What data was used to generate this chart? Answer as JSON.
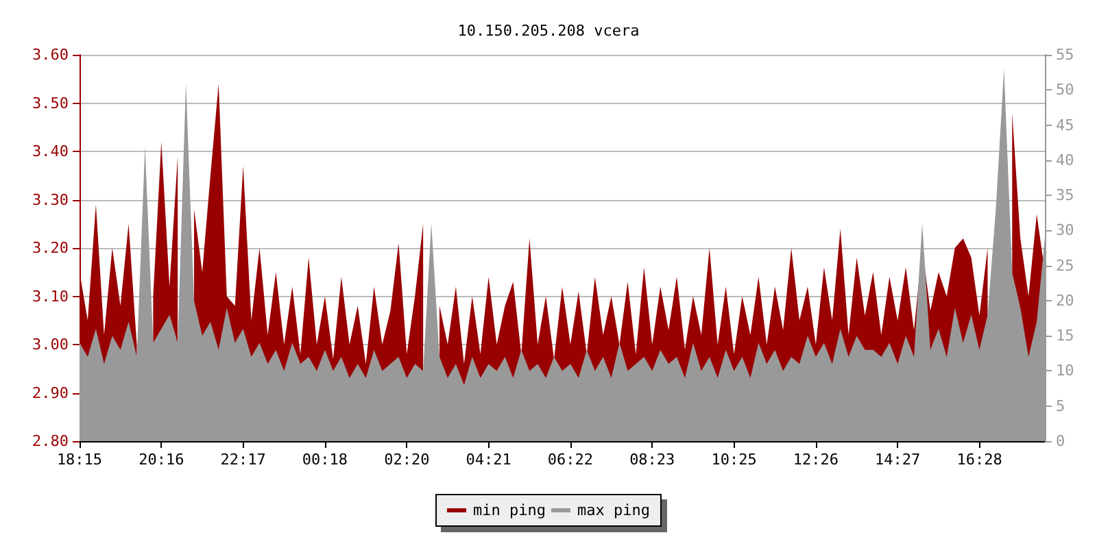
{
  "chart_data": {
    "type": "area",
    "title": "10.150.205.208 vcera",
    "categories": [
      "18:15",
      null,
      null,
      null,
      null,
      null,
      null,
      null,
      null,
      null,
      "20:16",
      null,
      null,
      null,
      null,
      null,
      null,
      null,
      null,
      null,
      "22:17",
      null,
      null,
      null,
      null,
      null,
      null,
      null,
      null,
      null,
      "00:18",
      null,
      null,
      null,
      null,
      null,
      null,
      null,
      null,
      null,
      "02:20",
      null,
      null,
      null,
      null,
      null,
      null,
      null,
      null,
      null,
      "04:21",
      null,
      null,
      null,
      null,
      null,
      null,
      null,
      null,
      null,
      "06:22",
      null,
      null,
      null,
      null,
      null,
      null,
      null,
      null,
      null,
      "08:23",
      null,
      null,
      null,
      null,
      null,
      null,
      null,
      null,
      null,
      "10:25",
      null,
      null,
      null,
      null,
      null,
      null,
      null,
      null,
      null,
      "12:26",
      null,
      null,
      null,
      null,
      null,
      null,
      null,
      null,
      null,
      "14:27",
      null,
      null,
      null,
      null,
      null,
      null,
      null,
      null,
      null,
      "16:28",
      null,
      null,
      null,
      null,
      null,
      null,
      null,
      null
    ],
    "series": [
      {
        "name": "min ping",
        "color": "#990000",
        "values": [
          3.15,
          3.05,
          3.29,
          3.02,
          3.2,
          3.08,
          3.25,
          3.0,
          null,
          3.1,
          3.42,
          3.12,
          3.39,
          null,
          3.28,
          3.15,
          3.35,
          3.54,
          3.1,
          3.08,
          3.37,
          3.05,
          3.2,
          3.02,
          3.15,
          3.0,
          3.12,
          2.98,
          3.18,
          3.0,
          3.1,
          2.97,
          3.14,
          3.0,
          3.08,
          2.96,
          3.12,
          3.0,
          3.07,
          3.21,
          2.98,
          3.1,
          3.25,
          null,
          3.08,
          3.0,
          3.12,
          2.96,
          3.1,
          2.98,
          3.14,
          3.0,
          3.08,
          3.13,
          2.98,
          3.22,
          3.0,
          3.1,
          2.97,
          3.12,
          3.0,
          3.11,
          2.98,
          3.14,
          3.02,
          3.1,
          3.0,
          3.13,
          2.98,
          3.16,
          3.0,
          3.12,
          3.03,
          3.14,
          2.99,
          3.1,
          3.02,
          3.2,
          3.0,
          3.12,
          2.98,
          3.1,
          3.02,
          3.14,
          3.0,
          3.12,
          3.03,
          3.2,
          3.05,
          3.12,
          3.0,
          3.16,
          3.05,
          3.24,
          3.02,
          3.18,
          3.06,
          3.15,
          3.02,
          3.14,
          3.05,
          3.16,
          3.03,
          3.2,
          3.07,
          3.15,
          3.1,
          3.2,
          3.22,
          3.18,
          3.06,
          3.2,
          null,
          null,
          3.48,
          3.22,
          3.1,
          3.27,
          3.15
        ]
      },
      {
        "name": "max ping",
        "color": "#999999",
        "axis": "y2",
        "values": [
          14,
          12,
          16,
          11,
          15,
          13,
          17,
          12,
          42,
          14,
          16,
          18,
          14,
          51,
          20,
          15,
          17,
          13,
          19,
          14,
          16,
          12,
          14,
          11,
          13,
          10,
          14,
          11,
          12,
          10,
          13,
          10,
          12,
          9,
          11,
          9,
          13,
          10,
          11,
          12,
          9,
          11,
          10,
          31,
          12,
          9,
          11,
          8,
          12,
          9,
          11,
          10,
          12,
          9,
          13,
          10,
          11,
          9,
          12,
          10,
          11,
          9,
          13,
          10,
          12,
          9,
          14,
          10,
          11,
          12,
          10,
          13,
          11,
          12,
          9,
          14,
          10,
          12,
          9,
          13,
          10,
          12,
          9,
          14,
          11,
          13,
          10,
          12,
          11,
          15,
          12,
          14,
          11,
          16,
          12,
          15,
          13,
          13,
          12,
          14,
          11,
          15,
          12,
          31,
          13,
          16,
          12,
          19,
          14,
          18,
          13,
          18,
          33,
          53,
          24,
          19,
          12,
          17,
          29
        ]
      }
    ],
    "ylim": [
      2.8,
      3.6
    ],
    "yticks": [
      {
        "value": 2.8,
        "label": "2.80"
      },
      {
        "value": 2.9,
        "label": "2.90"
      },
      {
        "value": 3.0,
        "label": "3.00"
      },
      {
        "value": 3.1,
        "label": "3.10"
      },
      {
        "value": 3.2,
        "label": "3.20"
      },
      {
        "value": 3.3,
        "label": "3.30"
      },
      {
        "value": 3.4,
        "label": "3.40"
      },
      {
        "value": 3.5,
        "label": "3.50"
      },
      {
        "value": 3.6,
        "label": "3.60"
      }
    ],
    "y2lim": [
      0,
      55
    ],
    "y2ticks": [
      0,
      5,
      10,
      15,
      20,
      25,
      30,
      35,
      40,
      45,
      50,
      55
    ],
    "grid": "y",
    "legend": "bottom"
  }
}
